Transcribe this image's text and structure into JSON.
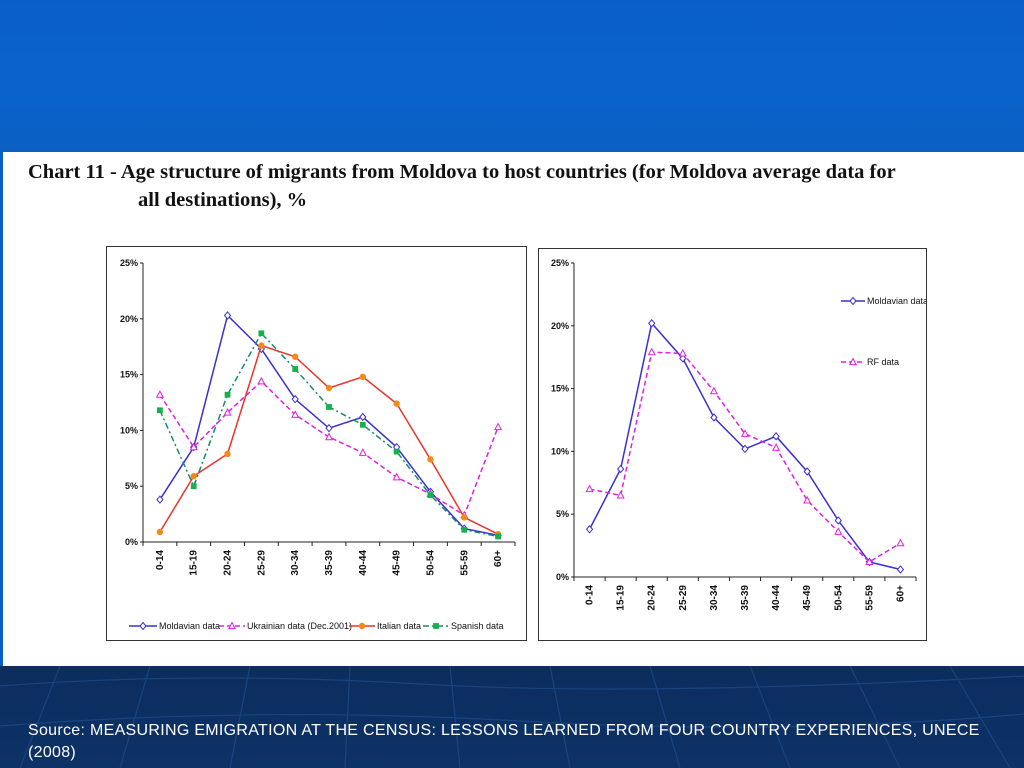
{
  "slide": {
    "title_line1": "Chart 11 - Age structure of migrants from Moldova to host countries (for Moldova average data for",
    "title_line2": "all destinations), %",
    "source": "Source: MEASURING EMIGRATION AT THE CENSUS: LESSONS LEARNED FROM FOUR COUNTRY EXPERIENCES, UNECE (2008)"
  },
  "chart_data": [
    {
      "type": "line",
      "title": "",
      "categories": [
        "0-14",
        "15-19",
        "20-24",
        "25-29",
        "30-34",
        "35-39",
        "40-44",
        "45-49",
        "50-54",
        "55-59",
        "60+"
      ],
      "y_ticks": [
        "0%",
        "5%",
        "10%",
        "15%",
        "20%",
        "25%"
      ],
      "ylim": [
        0,
        25
      ],
      "grid": false,
      "legend_position": "bottom",
      "series": [
        {
          "name": "Moldavian data",
          "color": "#3b2fd0",
          "dash": "solid",
          "marker": "diamond",
          "values": [
            3.8,
            8.5,
            20.3,
            17.3,
            12.8,
            10.2,
            11.2,
            8.5,
            4.5,
            1.2,
            0.6
          ]
        },
        {
          "name": "Ukrainian data (Dec.2001)",
          "color": "#e020e0",
          "dash": "dashed",
          "marker": "triangle",
          "values": [
            13.2,
            8.5,
            11.6,
            14.4,
            11.4,
            9.4,
            8.0,
            5.8,
            4.3,
            2.4,
            10.3
          ]
        },
        {
          "name": "Italian data",
          "color": "#e8352a",
          "dash": "solid",
          "marker": "circle",
          "marker_color": "#f08a1a",
          "values": [
            0.9,
            5.9,
            7.9,
            17.6,
            16.6,
            13.8,
            14.8,
            12.4,
            7.4,
            2.2,
            0.7
          ]
        },
        {
          "name": "Spanish data",
          "color": "#1a8a6a",
          "dash": "dashdot",
          "marker": "square",
          "marker_color": "#18b04a",
          "values": [
            11.8,
            5.0,
            13.2,
            18.7,
            15.5,
            12.1,
            10.5,
            8.1,
            4.2,
            1.1,
            0.5
          ]
        }
      ]
    },
    {
      "type": "line",
      "title": "",
      "categories": [
        "0-14",
        "15-19",
        "20-24",
        "25-29",
        "30-34",
        "35-39",
        "40-44",
        "45-49",
        "50-54",
        "55-59",
        "60+"
      ],
      "y_ticks": [
        "0%",
        "5%",
        "10%",
        "15%",
        "20%",
        "25%"
      ],
      "ylim": [
        0,
        25
      ],
      "grid": false,
      "legend_position": "right",
      "series": [
        {
          "name": "Moldavian data",
          "color": "#3b2fd0",
          "dash": "solid",
          "marker": "diamond",
          "values": [
            3.8,
            8.6,
            20.2,
            17.4,
            12.7,
            10.2,
            11.2,
            8.4,
            4.5,
            1.2,
            0.6
          ]
        },
        {
          "name": "RF data",
          "color": "#e020e0",
          "dash": "dashed",
          "marker": "triangle",
          "values": [
            7.0,
            6.5,
            17.9,
            17.8,
            14.8,
            11.4,
            10.3,
            6.1,
            3.6,
            1.2,
            2.7
          ]
        }
      ]
    }
  ]
}
